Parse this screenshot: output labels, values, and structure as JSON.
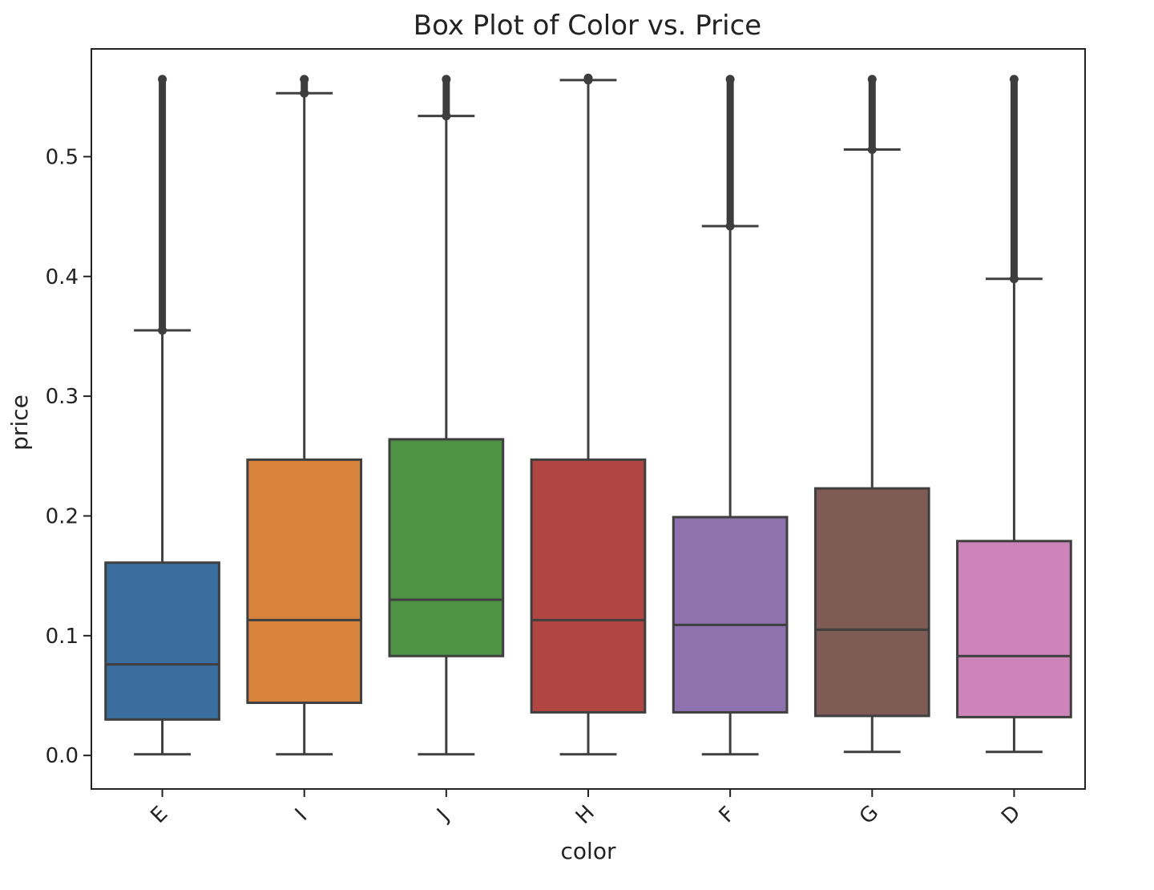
{
  "chart_data": {
    "type": "box",
    "title": "Box Plot of Color vs. Price",
    "xlabel": "color",
    "ylabel": "price",
    "ylim": [
      -0.028,
      0.59
    ],
    "yticks": [
      0.0,
      0.1,
      0.2,
      0.3,
      0.4,
      0.5
    ],
    "ytick_labels": [
      "0.0",
      "0.1",
      "0.2",
      "0.3",
      "0.4",
      "0.5"
    ],
    "grid": false,
    "legend": "none",
    "categories": [
      "E",
      "I",
      "J",
      "H",
      "F",
      "G",
      "D"
    ],
    "boxes": [
      {
        "category": "E",
        "color": "#3a6e9e",
        "whislo": 0.001,
        "q1": 0.03,
        "median": 0.076,
        "q3": 0.161,
        "whishi": 0.355,
        "fliers_from": 0.355,
        "fliers_to": 0.566
      },
      {
        "category": "I",
        "color": "#d8843c",
        "whislo": 0.001,
        "q1": 0.044,
        "median": 0.113,
        "q3": 0.247,
        "whishi": 0.553,
        "fliers_from": 0.553,
        "fliers_to": 0.566
      },
      {
        "category": "J",
        "color": "#4f9145",
        "whislo": 0.001,
        "q1": 0.083,
        "median": 0.13,
        "q3": 0.264,
        "whishi": 0.534,
        "fliers_from": 0.534,
        "fliers_to": 0.566
      },
      {
        "category": "H",
        "color": "#b04541",
        "whislo": 0.001,
        "q1": 0.036,
        "median": 0.113,
        "q3": 0.247,
        "whishi": 0.564,
        "fliers_from": 0.564,
        "fliers_to": 0.567
      },
      {
        "category": "F",
        "color": "#8e72ad",
        "whislo": 0.001,
        "q1": 0.036,
        "median": 0.109,
        "q3": 0.199,
        "whishi": 0.442,
        "fliers_from": 0.442,
        "fliers_to": 0.566
      },
      {
        "category": "G",
        "color": "#7e5c55",
        "whislo": 0.003,
        "q1": 0.033,
        "median": 0.105,
        "q3": 0.223,
        "whishi": 0.506,
        "fliers_from": 0.506,
        "fliers_to": 0.566
      },
      {
        "category": "D",
        "color": "#cc84b9",
        "whislo": 0.003,
        "q1": 0.032,
        "median": 0.083,
        "q3": 0.179,
        "whishi": 0.398,
        "fliers_from": 0.398,
        "fliers_to": 0.566
      }
    ]
  }
}
